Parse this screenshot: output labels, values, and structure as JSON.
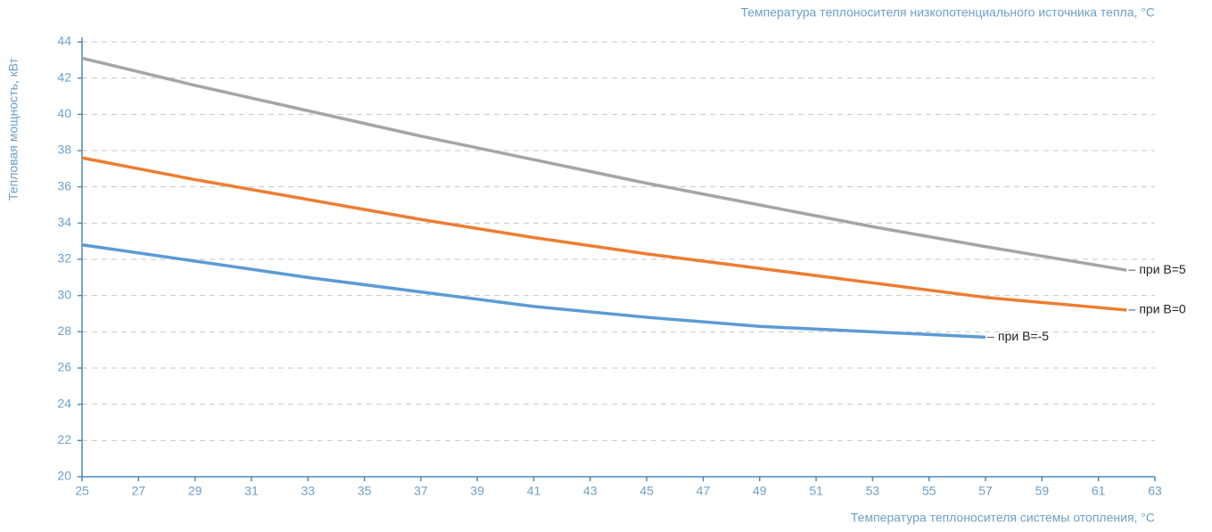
{
  "chart_data": {
    "type": "line",
    "x_label": "Температура теплоносителя системы отопления, °C",
    "y_label": "Тепловая мощность, кВт",
    "annotation": "Температура теплоносителя низкопотенциального источника тепла, °C",
    "x": [
      25,
      29,
      33,
      37,
      41,
      45,
      49,
      53,
      57,
      62
    ],
    "series": [
      {
        "name": "при B=5",
        "color": "#a5a5a5",
        "values": [
          43.1,
          41.6,
          40.2,
          38.8,
          37.5,
          36.2,
          35.0,
          33.8,
          32.7,
          31.4
        ]
      },
      {
        "name": "при B=0",
        "color": "#ed7d31",
        "values": [
          37.6,
          36.4,
          35.3,
          34.2,
          33.2,
          32.3,
          31.5,
          30.7,
          29.9,
          29.2
        ]
      },
      {
        "name": "при B=-5",
        "color": "#5b9bd5",
        "values": [
          32.8,
          31.9,
          31.0,
          30.2,
          29.4,
          28.8,
          28.3,
          28.0,
          27.7,
          null
        ]
      }
    ],
    "xlim": [
      25,
      63
    ],
    "xticks": [
      25,
      27,
      29,
      31,
      33,
      35,
      37,
      39,
      41,
      43,
      45,
      47,
      49,
      51,
      53,
      55,
      57,
      59,
      61,
      63
    ],
    "ylim": [
      20,
      44
    ],
    "yticks": [
      20,
      22,
      24,
      26,
      28,
      30,
      32,
      34,
      36,
      38,
      40,
      42,
      44
    ],
    "grid": true
  }
}
